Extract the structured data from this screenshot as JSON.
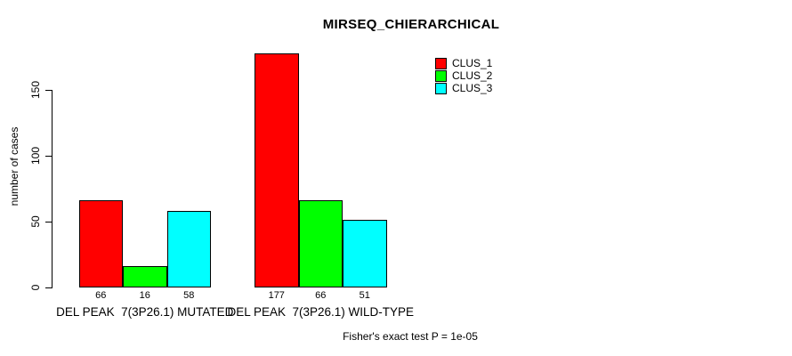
{
  "chart_data": {
    "type": "bar",
    "title": "MIRSEQ_CHIERARCHICAL",
    "ylabel": "number of cases",
    "yticks": [
      0,
      50,
      100,
      150
    ],
    "ylim": [
      0,
      184
    ],
    "grid": false,
    "legend_position": "top-right-inside",
    "categories": [
      "DEL PEAK  7(3P26.1) MUTATED",
      "DEL PEAK  7(3P26.1) WILD-TYPE"
    ],
    "series": [
      {
        "name": "CLUS_1",
        "color": "#ff0000",
        "values": [
          66,
          177
        ]
      },
      {
        "name": "CLUS_2",
        "color": "#00ff00",
        "values": [
          16,
          66
        ]
      },
      {
        "name": "CLUS_3",
        "color": "#00ffff",
        "values": [
          58,
          51
        ]
      }
    ],
    "bar_value_labels_shown": true,
    "footnote": "Fisher's exact test P = 1e-05"
  }
}
